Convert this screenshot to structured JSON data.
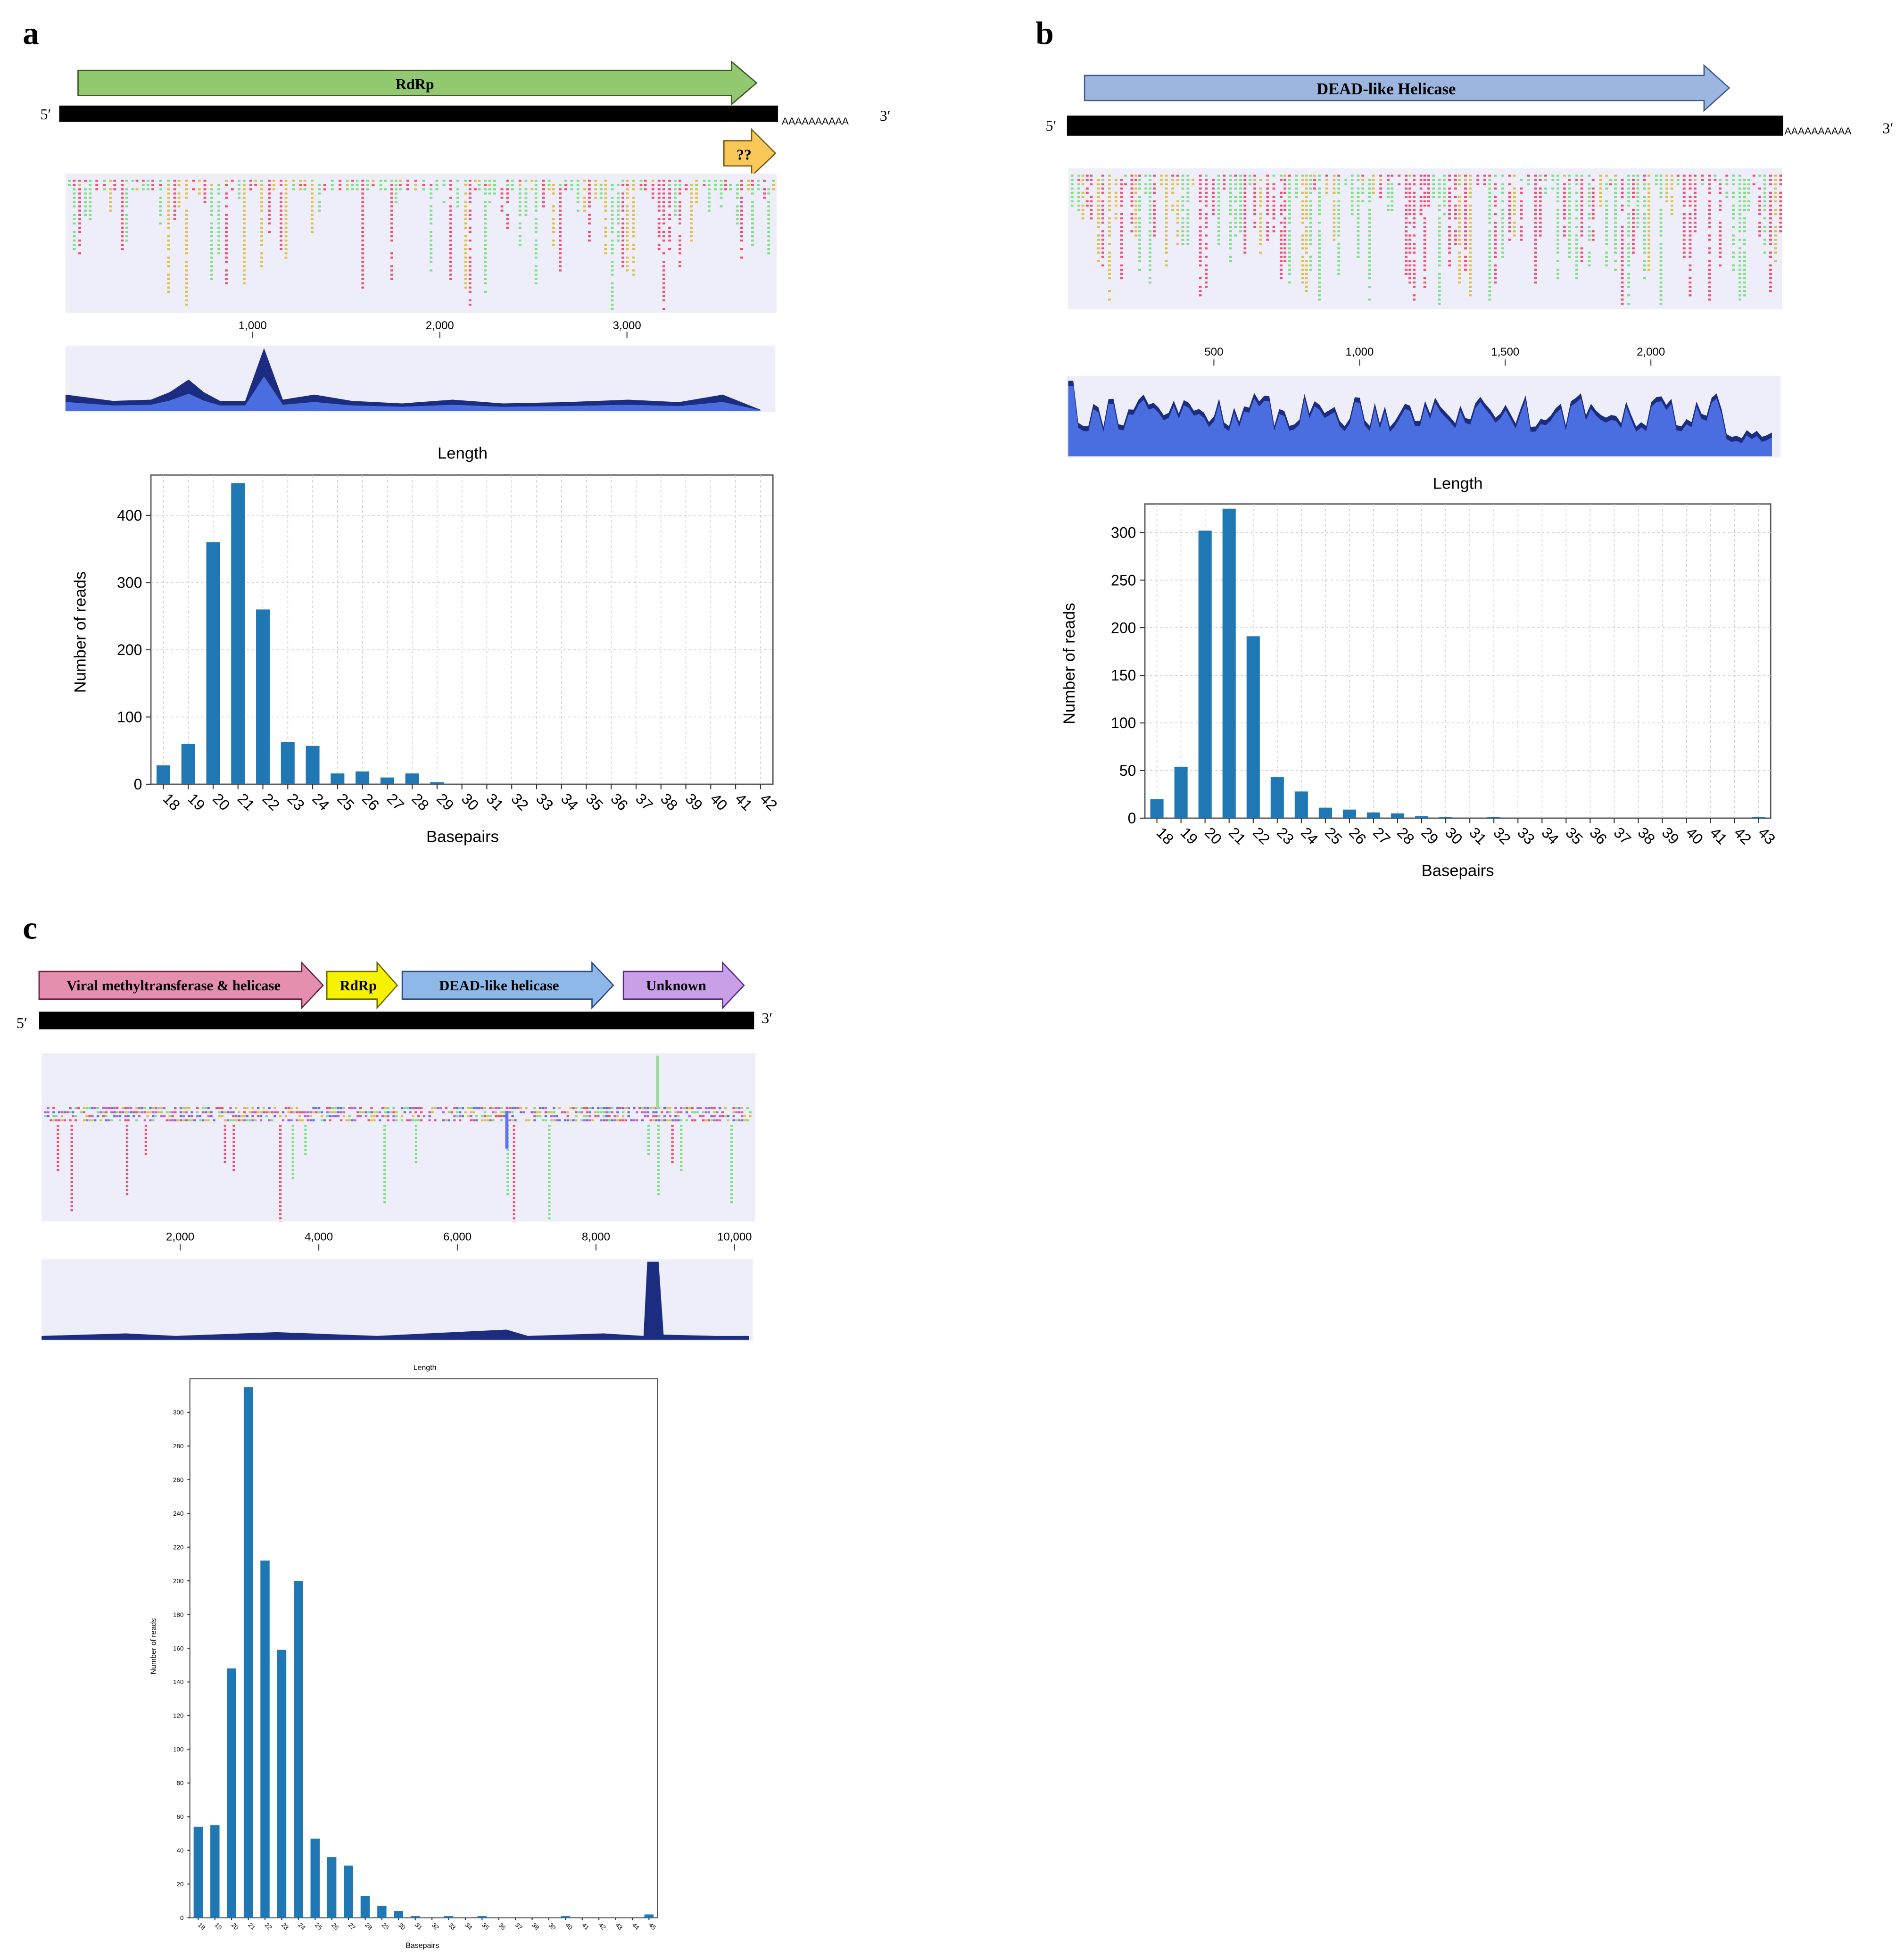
{
  "figure": {
    "panel_a": {
      "letter": "a",
      "genes": [
        {
          "label": "RdRp",
          "color": "#92c870"
        },
        {
          "label": "??",
          "color": "#fac858"
        }
      ],
      "five_prime": "5′",
      "three_prime": "3′",
      "polyA": "AAAAAAAAAA",
      "ruler_ticks": [
        "1,000",
        "2,000",
        "3,000"
      ],
      "ruler_values": [
        1000,
        2000,
        3000
      ],
      "genome_length": 3800
    },
    "panel_b": {
      "letter": "b",
      "genes": [
        {
          "label": "DEAD-like Helicase",
          "color": "#9cb6e0"
        }
      ],
      "five_prime": "5′",
      "three_prime": "3′",
      "polyA": "AAAAAAAAAA",
      "ruler_ticks": [
        "500",
        "1,000",
        "1,500",
        "2,000"
      ],
      "ruler_values": [
        500,
        1000,
        1500,
        2000
      ],
      "genome_length": 2450
    },
    "panel_c": {
      "letter": "c",
      "genes": [
        {
          "label": "Viral methyltransferase & helicase",
          "color": "#e48fb0"
        },
        {
          "label": "RdRp",
          "color": "#f7f200"
        },
        {
          "label": "DEAD-like helicase",
          "color": "#8db8e8"
        },
        {
          "label": "Unknown",
          "color": "#c9a0e8"
        }
      ],
      "five_prime": "5′",
      "three_prime": "3′",
      "ruler_ticks": [
        "2,000",
        "4,000",
        "6,000",
        "8,000",
        "10,000"
      ],
      "ruler_values": [
        2000,
        4000,
        6000,
        8000,
        10000
      ],
      "genome_length": 10300
    }
  },
  "colors": {
    "bar": "#1f77b4",
    "track_bg": "#eeeefb",
    "coverage_dark": "#1c2c80",
    "coverage_light": "#4a6ee0",
    "read_red": "#f0506e",
    "read_green": "#7ee07e"
  },
  "chart_data": [
    {
      "panel": "a",
      "type": "bar",
      "title": "Length",
      "xlabel": "Basepairs",
      "ylabel": "Number of reads",
      "categories": [
        "18",
        "19",
        "20",
        "21",
        "22",
        "23",
        "24",
        "25",
        "26",
        "27",
        "28",
        "29",
        "30",
        "31",
        "32",
        "33",
        "34",
        "35",
        "36",
        "37",
        "38",
        "39",
        "40",
        "41",
        "42"
      ],
      "values": [
        28,
        60,
        360,
        448,
        260,
        63,
        57,
        16,
        19,
        10,
        16,
        3,
        0,
        0,
        0,
        0,
        0,
        0,
        0,
        0,
        0,
        0,
        0,
        0,
        0
      ],
      "ylim": [
        0,
        460
      ],
      "yticks": [
        0,
        100,
        200,
        300,
        400
      ],
      "grid": true
    },
    {
      "panel": "b",
      "type": "bar",
      "title": "Length",
      "xlabel": "Basepairs",
      "ylabel": "Number of reads",
      "categories": [
        "18",
        "19",
        "20",
        "21",
        "22",
        "23",
        "24",
        "25",
        "26",
        "27",
        "28",
        "29",
        "30",
        "31",
        "32",
        "33",
        "34",
        "35",
        "36",
        "37",
        "38",
        "39",
        "40",
        "41",
        "42",
        "43"
      ],
      "values": [
        20,
        54,
        302,
        325,
        191,
        43,
        28,
        11,
        9,
        6,
        5,
        2,
        1,
        0,
        1,
        0,
        0,
        0,
        0,
        0,
        0,
        0,
        0,
        0,
        0,
        1
      ],
      "ylim": [
        0,
        330
      ],
      "yticks": [
        0,
        50,
        100,
        150,
        200,
        250,
        300
      ],
      "grid": true
    },
    {
      "panel": "c",
      "type": "bar",
      "title": "Length",
      "xlabel": "Basepairs",
      "ylabel": "Number of reads",
      "categories": [
        "18",
        "19",
        "20",
        "21",
        "22",
        "23",
        "24",
        "25",
        "26",
        "27",
        "28",
        "29",
        "30",
        "31",
        "32",
        "33",
        "34",
        "35",
        "36",
        "37",
        "38",
        "39",
        "40",
        "41",
        "42",
        "43",
        "44",
        "45"
      ],
      "values": [
        54,
        55,
        148,
        315,
        212,
        159,
        200,
        47,
        36,
        31,
        13,
        7,
        4,
        1,
        0,
        1,
        0,
        1,
        0,
        0,
        0,
        0,
        1,
        0,
        0,
        0,
        0,
        2
      ],
      "ylim": [
        0,
        320
      ],
      "yticks": [
        0,
        20,
        40,
        60,
        80,
        100,
        120,
        140,
        160,
        180,
        200,
        220,
        240,
        260,
        280,
        300
      ],
      "grid": false
    }
  ]
}
